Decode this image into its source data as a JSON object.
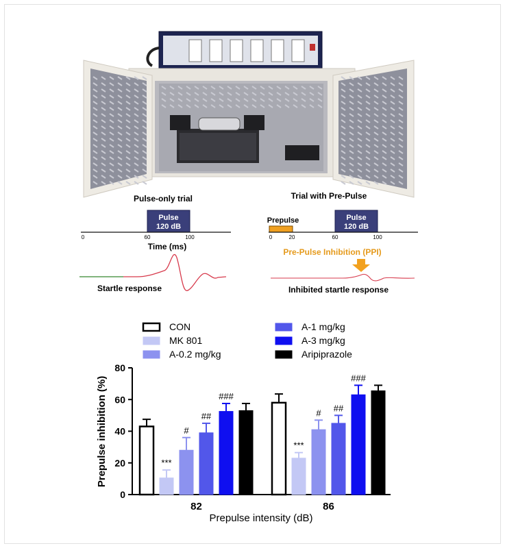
{
  "panel_a": {
    "pulse_only_title": "Pulse-only trial",
    "prepulse_title": "Trial with Pre-Pulse",
    "pulse_label_line1": "Pulse",
    "pulse_label_line2": "120 dB",
    "prepulse_label": "Prepulse",
    "left_ticks": [
      "0",
      "60",
      "100"
    ],
    "right_ticks": [
      "0",
      "20",
      "60",
      "100"
    ],
    "time_axis_label": "Time (ms)",
    "startle_label": "Startle response",
    "ppi_label": "Pre-Pulse Inhibition (PPI)",
    "inhibited_label": "Inhibited startle response",
    "colors": {
      "pulse_box": "#3a3f7a",
      "prepulse_box": "#f0a020",
      "ppi_text": "#e59a1c",
      "ppi_arrow": "#f2a11f",
      "trace_red": "#d7394b",
      "trace_green": "#3aa64a"
    }
  },
  "chart_data": {
    "type": "bar",
    "categories": [
      "82",
      "86"
    ],
    "xlabel": "Prepulse intensity (dB)",
    "ylabel": "Prepulse inhibition (%)",
    "ylim": [
      0,
      80
    ],
    "yticks": [
      0,
      20,
      40,
      60,
      80
    ],
    "legend_position": "top",
    "series": [
      {
        "name": "CON",
        "color": "#ffffff",
        "values": [
          43,
          58
        ],
        "errors": [
          4.5,
          5.5
        ],
        "annotations": [
          "",
          ""
        ]
      },
      {
        "name": "MK 801",
        "color": "#c3c8f5",
        "values": [
          10.5,
          23
        ],
        "errors": [
          5,
          3.5
        ],
        "annotations": [
          "***",
          "***"
        ]
      },
      {
        "name": "A-0.2 mg/kg",
        "color": "#8c92ef",
        "values": [
          28,
          41
        ],
        "errors": [
          8,
          6
        ],
        "annotations": [
          "#",
          "#"
        ]
      },
      {
        "name": "A-1 mg/kg",
        "color": "#5257ea",
        "values": [
          39,
          45
        ],
        "errors": [
          6,
          5
        ],
        "annotations": [
          "##",
          "##"
        ]
      },
      {
        "name": "A-3 mg/kg",
        "color": "#0f0ff0",
        "values": [
          52.5,
          63
        ],
        "errors": [
          5,
          6
        ],
        "annotations": [
          "###",
          "###"
        ]
      },
      {
        "name": "Aripiprazole",
        "color": "#000000",
        "values": [
          53,
          65.5
        ],
        "errors": [
          4.5,
          3.5
        ],
        "annotations": [
          "",
          ""
        ]
      }
    ]
  }
}
